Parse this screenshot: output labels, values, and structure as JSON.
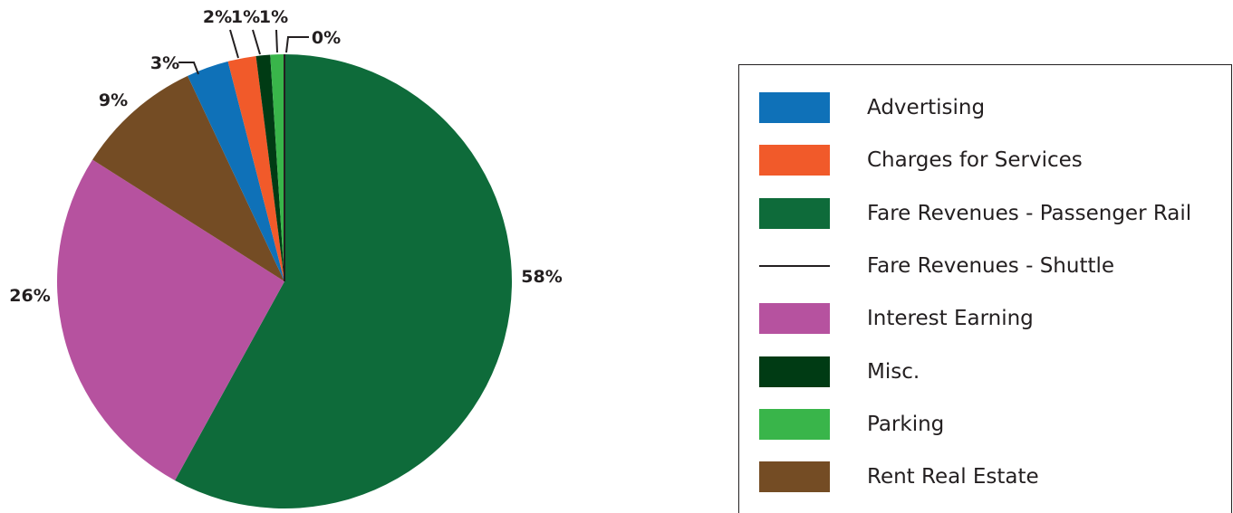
{
  "chart_data": {
    "type": "pie",
    "slices": [
      {
        "name": "Fare Revenues - Passenger Rail",
        "value": 58,
        "label": "58%",
        "color": "#0e6b3a"
      },
      {
        "name": "Interest Earning",
        "value": 26,
        "label": "26%",
        "color": "#b6529f"
      },
      {
        "name": "Rent Real Estate",
        "value": 9,
        "label": "9%",
        "color": "#744c24"
      },
      {
        "name": "Advertising",
        "value": 3,
        "label": "3%",
        "color": "#0f71b8"
      },
      {
        "name": "Charges for Services",
        "value": 2,
        "label": "2%",
        "color": "#f15a2a"
      },
      {
        "name": "Misc.",
        "value": 1,
        "label": "1%",
        "color": "#003b14"
      },
      {
        "name": "Parking",
        "value": 1,
        "label": "1%",
        "color": "#39b54a"
      },
      {
        "name": "Fare Revenues - Shuttle",
        "value": 0,
        "label": "0%",
        "color": "#231f20"
      }
    ],
    "legend": [
      {
        "label": "Advertising",
        "color": "#0f71b8",
        "style": "box"
      },
      {
        "label": "Charges for Services",
        "color": "#f15a2a",
        "style": "box"
      },
      {
        "label": "Fare Revenues - Passenger Rail",
        "color": "#0e6b3a",
        "style": "box"
      },
      {
        "label": "Fare Revenues - Shuttle",
        "color": "#231f20",
        "style": "line"
      },
      {
        "label": "Interest Earning",
        "color": "#b6529f",
        "style": "box"
      },
      {
        "label": "Misc.",
        "color": "#003b14",
        "style": "box"
      },
      {
        "label": "Parking",
        "color": "#39b54a",
        "style": "box"
      },
      {
        "label": "Rent Real Estate",
        "color": "#744c24",
        "style": "box"
      }
    ],
    "legend_position": "right"
  }
}
